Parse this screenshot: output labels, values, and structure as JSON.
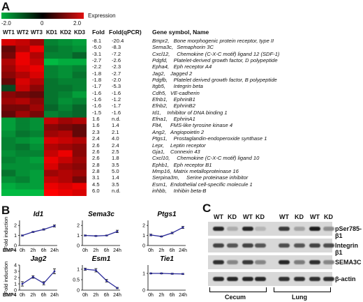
{
  "panelA": {
    "letter": "A",
    "colorbar": {
      "label": "Expression",
      "min": "-2.0",
      "mid": "0",
      "max": "2.0",
      "low_color": "#00b040",
      "mid_color": "#000000",
      "high_color": "#e01010"
    },
    "samples": [
      "WT1",
      "WT2",
      "WT3",
      "KD1",
      "KD2",
      "KD3"
    ],
    "headers": {
      "fold": "Fold",
      "fold_qpcr": "Fold(qPCR)",
      "gene": "Gene symbol, Name"
    },
    "rows": [
      {
        "fold": "-8.1",
        "qpcr": "-20.4",
        "symbol": "Bmpr2,",
        "name": "Bone morphogenic protein receptor, type II"
      },
      {
        "fold": "-5.0",
        "qpcr": "-8.3",
        "symbol": "Sema3c,",
        "name": "Semaphorin 3C"
      },
      {
        "fold": "-3.1",
        "qpcr": "-7.2",
        "symbol": "Cxcl12,",
        "name": "Chemokine (C-X-C motif) ligand 12 (SDF-1)"
      },
      {
        "fold": "-2.7",
        "qpcr": "-2.6",
        "symbol": "Pdgfd,",
        "name": "Platelet-derived growth factor, D polypeptide"
      },
      {
        "fold": "-2.2",
        "qpcr": "-2.3",
        "symbol": "Epha4,",
        "name": "Eph receptor A4"
      },
      {
        "fold": "-1.8",
        "qpcr": "-2.7",
        "symbol": "Jag2,",
        "name": "Jagged 2"
      },
      {
        "fold": "-1.8",
        "qpcr": "-2.0",
        "symbol": "Pdgfb,",
        "name": "Platelet derived growth factor, B polypeptide"
      },
      {
        "fold": "-1.7",
        "qpcr": "-5.3",
        "symbol": "Itgb5,",
        "name": "Integrin beta"
      },
      {
        "fold": "-1.6",
        "qpcr": "-1.6",
        "symbol": "Cdh5,",
        "name": "VE-cadherin"
      },
      {
        "fold": "-1.6",
        "qpcr": "-1.2",
        "symbol": "Efnb1,",
        "name": "EphrinB1"
      },
      {
        "fold": "-1.6",
        "qpcr": "-1.7",
        "symbol": "Efnb2,",
        "name": "EphrinB2"
      },
      {
        "fold": "-1.5",
        "qpcr": "-1.6",
        "symbol": "Id1,",
        "name": "Inhibitor of DNA binding 1"
      },
      {
        "fold": "1.6",
        "qpcr": "n.d.",
        "symbol": "Efna1,",
        "name": "EphrinA1"
      },
      {
        "fold": "1.6",
        "qpcr": "1.4",
        "symbol": "Flt4,",
        "name": "FMS-like tyrosine kinase 4"
      },
      {
        "fold": "2.3",
        "qpcr": "2.1",
        "symbol": "Ang2,",
        "name": "Angiopoietin 2"
      },
      {
        "fold": "2.4",
        "qpcr": "4.0",
        "symbol": "Ptgs1,",
        "name": "Prostaglandin-endoperoxide synthase 1"
      },
      {
        "fold": "2.6",
        "qpcr": "2.4",
        "symbol": "Lepr,",
        "name": "Leptin receptor"
      },
      {
        "fold": "2.6",
        "qpcr": "2.5",
        "symbol": "Gja1,",
        "name": "Connexin 43"
      },
      {
        "fold": "2.6",
        "qpcr": "1.8",
        "symbol": "Cxcl10,",
        "name": "Chemokine (C-X-C motif) ligand 10"
      },
      {
        "fold": "2.8",
        "qpcr": "3.5",
        "symbol": "Ephb1,",
        "name": "Eph receptor B1"
      },
      {
        "fold": "2.8",
        "qpcr": "5.0",
        "symbol": "Mmp16,",
        "name": "Matrix metalloproteinase 16"
      },
      {
        "fold": "3.1",
        "qpcr": "1.4",
        "symbol": "Serpina3m,",
        "name": "Serine proteinase inhibitor"
      },
      {
        "fold": "4.5",
        "qpcr": "3.5",
        "symbol": "Esm1,",
        "name": "Endothelial cell-specific molecule 1"
      },
      {
        "fold": "6.0",
        "qpcr": "n.d.",
        "symbol": "inhbb,",
        "name": "Inhibin beta-B"
      }
    ],
    "heatmap": [
      [
        0.8,
        0.7,
        0.5,
        -0.5,
        -0.6,
        -0.7
      ],
      [
        0.2,
        0.6,
        0.9,
        -0.4,
        -0.5,
        -0.6
      ],
      [
        0.3,
        0.9,
        0.6,
        -0.5,
        -0.5,
        -0.3
      ],
      [
        0.6,
        0.9,
        0.7,
        -0.9,
        -0.8,
        -0.8
      ],
      [
        0.5,
        0.8,
        0.9,
        -0.5,
        -0.6,
        -0.5
      ],
      [
        0.4,
        0.6,
        0.8,
        -0.5,
        -0.6,
        -0.4
      ],
      [
        0.2,
        0.8,
        0.6,
        -0.4,
        -0.5,
        -0.5
      ],
      [
        -0.1,
        0.7,
        0.4,
        -0.4,
        -0.4,
        -0.5
      ],
      [
        0.4,
        0.3,
        0.2,
        -0.4,
        -0.5,
        -0.7
      ],
      [
        0.5,
        0.6,
        0.4,
        -0.4,
        -0.6,
        -0.5
      ],
      [
        0.3,
        0.3,
        0.5,
        -0.3,
        -0.5,
        -0.3
      ],
      [
        0.2,
        0.5,
        0.3,
        -0.5,
        -0.4,
        -0.3
      ],
      [
        -0.7,
        -0.5,
        -0.6,
        0.7,
        0.5,
        0.6
      ],
      [
        -0.7,
        -0.5,
        -0.6,
        0.4,
        0.3,
        0.2
      ],
      [
        -0.6,
        -0.4,
        -0.5,
        0.5,
        0.6,
        0.2
      ],
      [
        -0.5,
        -0.6,
        -0.7,
        0.8,
        0.7,
        0.6
      ],
      [
        -0.5,
        -0.4,
        -0.6,
        0.6,
        0.5,
        0.4
      ],
      [
        -0.6,
        -0.5,
        -0.5,
        0.7,
        0.9,
        0.4
      ],
      [
        -0.5,
        -0.6,
        -0.7,
        0.9,
        0.7,
        0.5
      ],
      [
        -0.6,
        -0.6,
        -0.6,
        0.8,
        0.5,
        0.4
      ],
      [
        -0.4,
        -0.6,
        -0.7,
        0.5,
        0.6,
        0.5
      ],
      [
        -0.6,
        -0.5,
        -0.7,
        0.7,
        0.6,
        0.3
      ],
      [
        -0.8,
        -0.7,
        -0.7,
        0.9,
        0.8,
        0.9
      ],
      [
        -0.9,
        -0.9,
        -0.9,
        1.0,
        0.9,
        0.8
      ]
    ]
  },
  "panelB": {
    "letter": "B",
    "ylabel": "Fold induction",
    "xlabel_prefix": "BMP4",
    "timepoints": [
      "0h",
      "2h",
      "6h",
      "24h"
    ],
    "line_color": "#2b2b9a",
    "chart_data": [
      {
        "type": "line",
        "title": "Id1",
        "x": [
          "0h",
          "2h",
          "6h",
          "24h"
        ],
        "y": [
          1.0,
          1.35,
          1.6,
          1.95
        ],
        "err": [
          0.05,
          0.05,
          0.07,
          0.1
        ],
        "ylim": [
          0,
          2.5
        ],
        "yticks": [
          0,
          1,
          2
        ],
        "ylabel": "Fold induction"
      },
      {
        "type": "line",
        "title": "Sema3c",
        "x": [
          "0h",
          "2h",
          "6h",
          "24h"
        ],
        "y": [
          1.0,
          0.95,
          1.0,
          1.4
        ],
        "err": [
          0.05,
          0.04,
          0.04,
          0.12
        ],
        "ylim": [
          0,
          2.5
        ],
        "yticks": [
          0,
          1,
          2
        ],
        "ylabel": ""
      },
      {
        "type": "line",
        "title": "Ptgs1",
        "x": [
          "0h",
          "2h",
          "6h",
          "24h"
        ],
        "y": [
          1.05,
          0.9,
          1.25,
          1.8
        ],
        "err": [
          0.08,
          0.05,
          0.08,
          0.1
        ],
        "ylim": [
          0,
          2.5
        ],
        "yticks": [
          0,
          1,
          2
        ],
        "ylabel": ""
      },
      {
        "type": "line",
        "title": "Jag2",
        "x": [
          "0h",
          "2h",
          "6h",
          "24h"
        ],
        "y": [
          1.0,
          2.1,
          1.1,
          3.0
        ],
        "err": [
          0.35,
          0.2,
          0.25,
          0.4
        ],
        "ylim": [
          0,
          4
        ],
        "yticks": [
          0,
          1,
          2,
          3,
          4
        ],
        "ylabel": "Fold induction"
      },
      {
        "type": "line",
        "title": "Esm1",
        "x": [
          "0h",
          "2h",
          "6h",
          "24h"
        ],
        "y": [
          1.0,
          0.95,
          0.45,
          0.1
        ],
        "err": [
          0.05,
          0.08,
          0.06,
          0.03
        ],
        "ylim": [
          0,
          1.2
        ],
        "yticks": [
          0,
          0.5,
          1
        ],
        "ylabel": ""
      },
      {
        "type": "line",
        "title": "Tie1",
        "x": [
          "0h",
          "2h",
          "6h",
          "24h"
        ],
        "y": [
          1.0,
          1.0,
          0.98,
          0.97
        ],
        "err": [
          0.03,
          0.03,
          0.03,
          0.03
        ],
        "ylim": [
          0,
          1.5
        ],
        "yticks": [
          0,
          1
        ],
        "ylabel": ""
      }
    ]
  },
  "panelC": {
    "letter": "C",
    "lanes": [
      "WT",
      "KD",
      "WT",
      "KD",
      "WT",
      "KD",
      "WT",
      "KD"
    ],
    "blots": [
      "pSer785-β1",
      "Integrin β1",
      "SEMA3C",
      "β-actin"
    ],
    "tissues": [
      "Cecum",
      "Lung"
    ],
    "band_intensity": [
      [
        0.85,
        0.15,
        0.85,
        0.1,
        0.75,
        0.2,
        0.9,
        0.3
      ],
      [
        0.7,
        0.6,
        0.7,
        0.6,
        0.65,
        0.6,
        0.7,
        0.65
      ],
      [
        0.8,
        0.35,
        0.75,
        0.35,
        0.85,
        0.4,
        0.8,
        0.35
      ],
      [
        0.85,
        0.85,
        0.85,
        0.85,
        0.8,
        0.8,
        0.8,
        0.8
      ]
    ]
  }
}
